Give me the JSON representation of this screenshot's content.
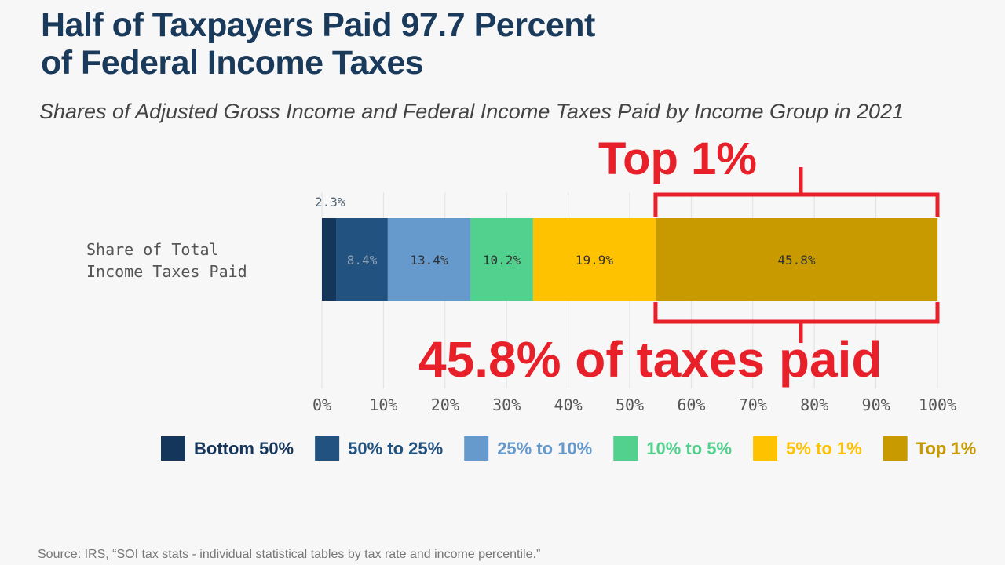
{
  "title_line1": "Half of Taxpayers Paid 97.7 Percent",
  "title_line2": "of Federal Income Taxes",
  "subtitle": "Shares of Adjusted Gross Income and Federal Income Taxes Paid by Income Group in 2021",
  "source": "Source: IRS, “SOI tax stats - individual statistical tables by tax rate and income percentile.”",
  "annotations": {
    "top_label": "Top 1%",
    "bottom_label": "45.8% of taxes paid",
    "color": "#e8202a"
  },
  "chart_data": {
    "type": "bar",
    "orientation": "horizontal-stacked",
    "categories": [
      "Share of Total Income Taxes Paid"
    ],
    "category_label_lines": [
      "Share of Total",
      "Income Taxes Paid"
    ],
    "series": [
      {
        "name": "Bottom 50%",
        "values": [
          2.3
        ],
        "label": "2.3%",
        "color": "#14365a"
      },
      {
        "name": "50% to 25%",
        "values": [
          8.4
        ],
        "label": "8.4%",
        "color": "#22527f"
      },
      {
        "name": "25% to 10%",
        "values": [
          13.4
        ],
        "label": "13.4%",
        "color": "#6699cc"
      },
      {
        "name": "10% to 5%",
        "values": [
          10.2
        ],
        "label": "10.2%",
        "color": "#52d18e"
      },
      {
        "name": "5% to 1%",
        "values": [
          19.9
        ],
        "label": "19.9%",
        "color": "#ffc200"
      },
      {
        "name": "Top 1%",
        "values": [
          45.8
        ],
        "label": "45.8%",
        "color": "#c89a00"
      }
    ],
    "xlim": [
      0,
      100
    ],
    "x_ticks": [
      "0%",
      "10%",
      "20%",
      "30%",
      "40%",
      "50%",
      "60%",
      "70%",
      "80%",
      "90%",
      "100%"
    ],
    "grid": "vertical",
    "legend": "bottom"
  }
}
